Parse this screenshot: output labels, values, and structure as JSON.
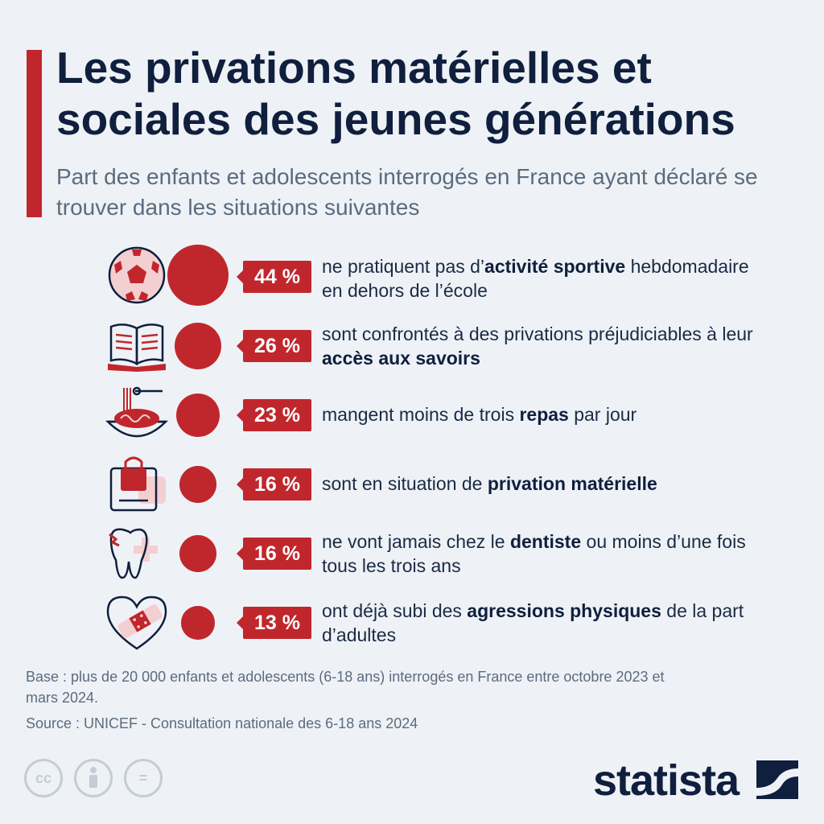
{
  "title": "Les privations matérielles et sociales des jeunes générations",
  "subtitle": "Part des enfants et adolescents interrogés en France ayant déclaré se trouver dans les situations suivantes",
  "chart_data": {
    "type": "bubble",
    "unit": "%",
    "categories": [
      "ne pratiquent pas d’activité sportive hebdomadaire en dehors de l’école",
      "sont confrontés à des privations préjudiciables à leur accès aux savoirs",
      "mangent moins de trois repas par jour",
      "sont en situation de privation matérielle",
      "ne vont jamais chez le dentiste ou moins d’une fois tous les trois ans",
      "ont déjà subi des agressions physiques de la part d’adultes"
    ],
    "values": [
      44,
      26,
      23,
      16,
      16,
      13
    ]
  },
  "rows": [
    {
      "icon": "soccer-ball-icon",
      "badge": "44 %",
      "pre": "ne pratiquent pas d’",
      "bold": "activité sportive",
      "post": " hebdomadaire en dehors de l’école"
    },
    {
      "icon": "open-book-icon",
      "badge": "26 %",
      "pre": "sont confrontés à des privations préjudiciables à leur ",
      "bold": "accès aux savoirs",
      "post": ""
    },
    {
      "icon": "spaghetti-plate-icon",
      "badge": "23 %",
      "pre": "mangent moins de trois ",
      "bold": "repas",
      "post": " par jour"
    },
    {
      "icon": "shopping-bag-icon",
      "badge": "16 %",
      "pre": "sont en situation de ",
      "bold": "privation matérielle",
      "post": ""
    },
    {
      "icon": "broken-tooth-icon",
      "badge": "16 %",
      "pre": "ne vont jamais chez le ",
      "bold": "dentiste",
      "post": " ou moins d’une fois tous les trois ans"
    },
    {
      "icon": "bandaged-heart-icon",
      "badge": "13 %",
      "pre": "ont déjà subi des ",
      "bold": "agressions physiques",
      "post": " de la part d’adultes"
    }
  ],
  "footer": {
    "base": "Base : plus de 20 000 enfants et adolescents (6-18 ans) interrogés en France entre octobre 2023 et mars 2024.",
    "source": "Source : UNICEF - Consultation nationale des 6-18 ans 2024",
    "brand": "statista",
    "cc_label": "cc",
    "nd_label": "="
  },
  "colors": {
    "accent": "#c0272d",
    "navy": "#0f1f3d",
    "pink": "#f4cfd2",
    "background": "#eef2f6"
  }
}
